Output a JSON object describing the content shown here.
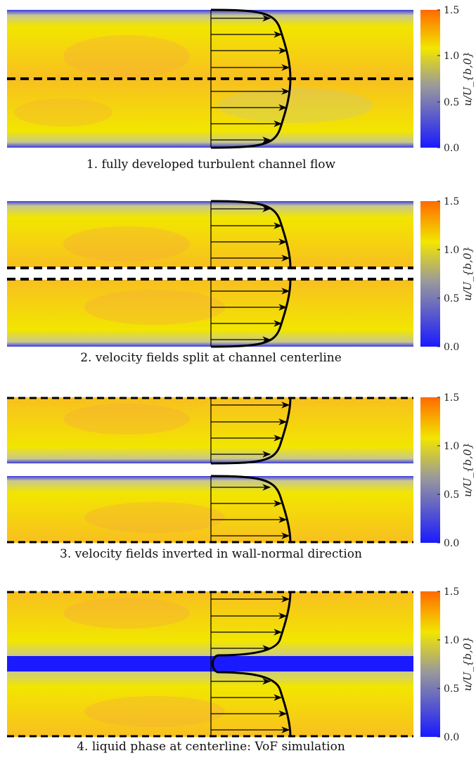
{
  "panels": [
    {
      "caption": "1. fully developed turbulent channel flow",
      "variant": "full"
    },
    {
      "caption": "2. velocity fields split at channel centerline",
      "variant": "split"
    },
    {
      "caption": "3. velocity fields inverted in wall-normal direction",
      "variant": "inverted"
    },
    {
      "caption": "4. liquid phase at centerline: VoF simulation",
      "variant": "vof"
    }
  ],
  "colorbar": {
    "ticks": [
      "1.5",
      "1.0",
      "0.5",
      "0.0"
    ],
    "label": "u/U_{b,0}",
    "min": 0.0,
    "max": 1.5,
    "colors": [
      "#1a1aff",
      "#9a9a9a",
      "#f2e600",
      "#ff6a00"
    ]
  }
}
